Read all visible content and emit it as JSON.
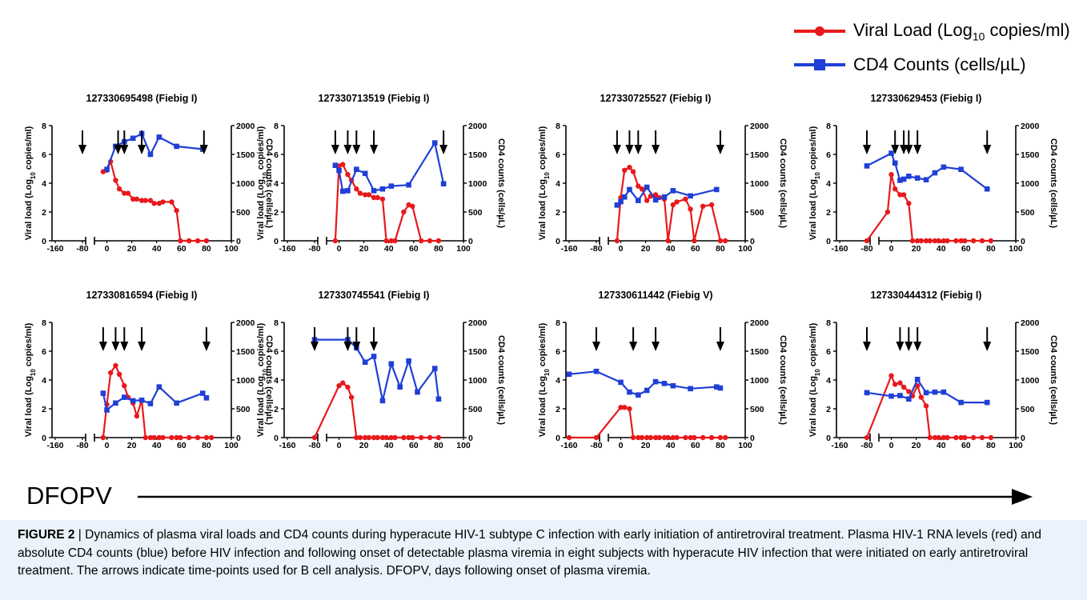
{
  "legend": {
    "viral_prefix": "Viral Load (Log",
    "viral_sub": "10",
    "viral_suffix": " copies/ml)",
    "cd4": "CD4 Counts (cells/µL)",
    "viral_color": "#e8191b",
    "cd4_color": "#1f3fd6"
  },
  "axis_text": {
    "left_prefix": "Viral load (Log",
    "left_sub": "10",
    "left_suffix": " copies/ml)",
    "right": "CD4 counts (cells/µL)"
  },
  "bottom": {
    "label": "DFOPV"
  },
  "caption": {
    "figure_label": "FIGURE 2",
    "text": " | Dynamics of plasma viral loads and CD4 counts during hyperacute HIV-1 subtype C infection with early initiation of antiretroviral treatment. Plasma HIV-1 RNA levels (red) and absolute CD4 counts (blue) before HIV infection and following onset of detectable plasma viremia in eight subjects with hyperacute HIV infection that were initiated on early antiretroviral treatment. The arrows indicate time-points used for B cell analysis. DFOPV, days following onset of plasma viremia."
  },
  "chart_data": [
    {
      "type": "line",
      "title": "127330695498 (Fiebig I)",
      "xlabel": "",
      "ylabel": "Viral load (Log10 copies/ml)",
      "y2label": "CD4 counts (cells/µL)",
      "x_ticks": [
        -160,
        -80,
        0,
        20,
        40,
        60,
        80,
        100
      ],
      "ylim": [
        0,
        8
      ],
      "y2lim": [
        0,
        2000
      ],
      "series": [
        {
          "name": "Viral Load (Log10 copies/ml)",
          "x": [
            -3,
            0,
            3,
            7,
            10,
            14,
            17,
            21,
            24,
            28,
            31,
            35,
            38,
            42,
            45,
            52,
            56,
            59,
            66,
            73,
            80
          ],
          "y": [
            4.8,
            4.9,
            5.5,
            4.2,
            3.6,
            3.3,
            3.3,
            2.9,
            2.9,
            2.8,
            2.8,
            2.8,
            2.6,
            2.6,
            2.7,
            2.7,
            2.1,
            0,
            0,
            0,
            0
          ]
        },
        {
          "name": "CD4 Counts (cells/µL)",
          "x": [
            0,
            7,
            14,
            21,
            28,
            35,
            42,
            56,
            77
          ],
          "y": [
            1240,
            1640,
            1720,
            1780,
            1860,
            1500,
            1800,
            1640,
            1590
          ]
        }
      ],
      "cd4_pre": {
        "x": -80,
        "y": 1700
      },
      "viral_pre": {
        "x": -80,
        "y": 0
      },
      "arrows_x": [
        -80,
        9,
        14,
        28,
        78
      ]
    },
    {
      "type": "line",
      "title": "127330713519 (Fiebig I)",
      "x_ticks": [
        -160,
        -80,
        0,
        20,
        40,
        60,
        80,
        100
      ],
      "ylim": [
        0,
        8
      ],
      "y2lim": [
        0,
        2000
      ],
      "series": [
        {
          "name": "Viral Load (Log10 copies/ml)",
          "x": [
            -3,
            0,
            3,
            7,
            10,
            14,
            17,
            21,
            24,
            28,
            31,
            35,
            38,
            42,
            45,
            52,
            56,
            59,
            66,
            73,
            80
          ],
          "y": [
            0,
            5.2,
            5.3,
            4.6,
            4.2,
            3.6,
            3.3,
            3.2,
            3.2,
            3.0,
            3.0,
            2.9,
            0,
            0,
            0,
            2.0,
            2.5,
            2.4,
            0,
            0,
            0
          ]
        },
        {
          "name": "CD4 Counts (cells/µL)",
          "x": [
            -3,
            0,
            3,
            7,
            14,
            21,
            28,
            35,
            42,
            56,
            77,
            84
          ],
          "y": [
            1310,
            1220,
            860,
            870,
            1240,
            1170,
            870,
            900,
            950,
            970,
            1700,
            990
          ]
        }
      ],
      "arrows_x": [
        -3,
        7,
        14,
        28,
        84
      ]
    },
    {
      "type": "line",
      "title": "127330725527 (Fiebig I)",
      "x_ticks": [
        -160,
        -80,
        0,
        20,
        40,
        60,
        80,
        100
      ],
      "ylim": [
        0,
        8
      ],
      "y2lim": [
        0,
        2000
      ],
      "series": [
        {
          "name": "Viral Load (Log10 copies/ml)",
          "x": [
            -3,
            0,
            3,
            7,
            10,
            14,
            17,
            21,
            24,
            28,
            31,
            35,
            38,
            42,
            45,
            52,
            56,
            59,
            66,
            73,
            80,
            84
          ],
          "y": [
            0,
            3.0,
            4.9,
            5.1,
            4.8,
            3.8,
            3.6,
            2.8,
            3.1,
            3.2,
            3.0,
            2.9,
            0,
            2.5,
            2.7,
            2.9,
            2.2,
            0,
            2.4,
            2.5,
            0,
            0
          ]
        },
        {
          "name": "CD4 Counts (cells/µL)",
          "x": [
            -3,
            0,
            3,
            7,
            14,
            21,
            28,
            35,
            42,
            56,
            77
          ],
          "y": [
            620,
            680,
            760,
            890,
            700,
            930,
            710,
            760,
            870,
            780,
            890
          ]
        }
      ],
      "arrows_x": [
        -3,
        7,
        14,
        28,
        80
      ]
    },
    {
      "type": "line",
      "title": "127330629453 (Fiebig I)",
      "x_ticks": [
        -160,
        -80,
        0,
        20,
        40,
        60,
        80,
        100
      ],
      "ylim": [
        0,
        8
      ],
      "y2lim": [
        0,
        2000
      ],
      "series": [
        {
          "name": "Viral Load (Log10 copies/ml)",
          "x": [
            -80,
            -3,
            0,
            3,
            7,
            10,
            14,
            17,
            21,
            24,
            28,
            31,
            35,
            38,
            42,
            45,
            52,
            56,
            59,
            66,
            73,
            80
          ],
          "y": [
            0,
            2.0,
            4.6,
            3.6,
            3.2,
            3.2,
            2.6,
            0,
            0,
            0,
            0,
            0,
            0,
            0,
            0,
            0,
            0,
            0,
            0,
            0,
            0,
            0
          ]
        },
        {
          "name": "CD4 Counts (cells/µL)",
          "x": [
            -80,
            0,
            3,
            7,
            10,
            14,
            21,
            28,
            35,
            42,
            56,
            77
          ],
          "y": [
            1300,
            1520,
            1350,
            1050,
            1070,
            1120,
            1090,
            1060,
            1180,
            1280,
            1240,
            900
          ]
        }
      ],
      "arrows_x": [
        -80,
        3,
        10,
        14,
        21,
        77
      ]
    },
    {
      "type": "line",
      "title": "127330816594 (Fiebig I)",
      "x_ticks": [
        -160,
        -80,
        0,
        20,
        40,
        60,
        80,
        100
      ],
      "ylim": [
        0,
        8
      ],
      "y2lim": [
        0,
        2000
      ],
      "series": [
        {
          "name": "Viral Load (Log10 copies/ml)",
          "x": [
            -3,
            0,
            3,
            7,
            10,
            14,
            17,
            21,
            24,
            28,
            31,
            35,
            38,
            42,
            45,
            52,
            56,
            59,
            66,
            73,
            80,
            84
          ],
          "y": [
            0,
            2.3,
            4.5,
            5.0,
            4.4,
            3.6,
            2.8,
            2.4,
            1.5,
            2.6,
            0,
            0,
            0,
            0,
            0,
            0,
            0,
            0,
            0,
            0,
            0,
            0
          ]
        },
        {
          "name": "CD4 Counts (cells/µL)",
          "x": [
            -3,
            0,
            7,
            14,
            21,
            28,
            35,
            42,
            56,
            77,
            80
          ],
          "y": [
            770,
            480,
            600,
            700,
            640,
            650,
            590,
            880,
            600,
            770,
            690
          ]
        }
      ],
      "arrows_x": [
        -3,
        7,
        14,
        28,
        80
      ]
    },
    {
      "type": "line",
      "title": "127330745541 (Fiebig I)",
      "x_ticks": [
        -160,
        -80,
        0,
        20,
        40,
        60,
        80,
        100
      ],
      "ylim": [
        0,
        8
      ],
      "y2lim": [
        0,
        2000
      ],
      "series": [
        {
          "name": "Viral Load (Log10 copies/ml)",
          "x": [
            -80,
            0,
            3,
            7,
            10,
            14,
            17,
            21,
            24,
            28,
            31,
            35,
            38,
            42,
            45,
            52,
            56,
            59,
            66,
            73,
            80
          ],
          "y": [
            0,
            3.6,
            3.8,
            3.5,
            2.8,
            0,
            0,
            0,
            0,
            0,
            0,
            0,
            0,
            0,
            0,
            0,
            0,
            0,
            0,
            0,
            0
          ]
        },
        {
          "name": "CD4 Counts (cells/µL)",
          "x": [
            -80,
            7,
            14,
            21,
            28,
            35,
            42,
            49,
            56,
            63,
            77,
            80
          ],
          "y": [
            1700,
            1700,
            1560,
            1310,
            1410,
            640,
            1280,
            880,
            1330,
            790,
            1200,
            670
          ]
        }
      ],
      "arrows_x": [
        -80,
        7,
        14,
        28
      ]
    },
    {
      "type": "line",
      "title": "127330611442 (Fiebig V)",
      "x_ticks": [
        -160,
        -80,
        0,
        20,
        40,
        60,
        80,
        100
      ],
      "ylim": [
        0,
        8
      ],
      "y2lim": [
        0,
        2000
      ],
      "series": [
        {
          "name": "Viral Load (Log10 copies/ml)",
          "x": [
            -160,
            -80,
            0,
            3,
            7,
            10,
            14,
            17,
            21,
            24,
            28,
            31,
            35,
            38,
            42,
            45,
            52,
            56,
            59,
            66,
            73,
            80,
            84
          ],
          "y": [
            0,
            0,
            2.1,
            2.1,
            2.0,
            0,
            0,
            0,
            0,
            0,
            0,
            0,
            0,
            0,
            0,
            0,
            0,
            0,
            0,
            0,
            0,
            0,
            0
          ]
        },
        {
          "name": "CD4 Counts (cells/µL)",
          "x": [
            -160,
            -80,
            0,
            7,
            14,
            21,
            28,
            35,
            42,
            56,
            77,
            80
          ],
          "y": [
            1100,
            1150,
            960,
            790,
            740,
            820,
            970,
            940,
            900,
            850,
            880,
            860
          ]
        }
      ],
      "arrows_x": [
        -80,
        10,
        28,
        80
      ]
    },
    {
      "type": "line",
      "title": "127330444312 (Fiebig I)",
      "x_ticks": [
        -160,
        -80,
        0,
        20,
        40,
        60,
        80,
        100
      ],
      "ylim": [
        0,
        8
      ],
      "y2lim": [
        0,
        2000
      ],
      "series": [
        {
          "name": "Viral Load (Log10 copies/ml)",
          "x": [
            -80,
            0,
            3,
            7,
            10,
            14,
            17,
            21,
            24,
            28,
            31,
            35,
            38,
            42,
            45,
            52,
            56,
            59,
            66,
            73,
            80
          ],
          "y": [
            0,
            4.3,
            3.7,
            3.8,
            3.5,
            3.2,
            2.9,
            3.6,
            2.8,
            2.2,
            0,
            0,
            0,
            0,
            0,
            0,
            0,
            0,
            0,
            0,
            0
          ]
        },
        {
          "name": "CD4 Counts (cells/µL)",
          "x": [
            -80,
            0,
            7,
            14,
            21,
            28,
            35,
            42,
            56,
            77
          ],
          "y": [
            780,
            720,
            730,
            670,
            1010,
            780,
            790,
            790,
            610,
            610
          ]
        }
      ],
      "arrows_x": [
        -80,
        7,
        14,
        21,
        77
      ]
    }
  ]
}
